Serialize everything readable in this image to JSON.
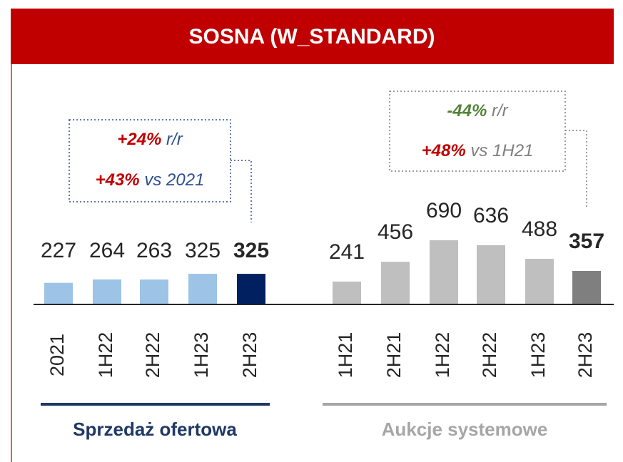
{
  "title": "SOSNA (W_STANDARD)",
  "chart_data": [
    {
      "type": "bar",
      "xlabel": "Sprzedaż ofertowa",
      "xlabel_color": "#1f3864",
      "categories": [
        "2021",
        "1H22",
        "2H22",
        "1H23",
        "2H23"
      ],
      "values": [
        227,
        264,
        263,
        325,
        325
      ],
      "colors": [
        "#9dc3e6",
        "#9dc3e6",
        "#9dc3e6",
        "#9dc3e6",
        "#002060"
      ],
      "annotations": [
        {
          "change": "+24%",
          "change_color": "#c00000",
          "text": "r/r",
          "text_color": "#2f4f8f"
        },
        {
          "change": "+43%",
          "change_color": "#c00000",
          "text": "vs 2021",
          "text_color": "#2f4f8f"
        }
      ]
    },
    {
      "type": "bar",
      "xlabel": "Aukcje systemowe",
      "xlabel_color": "#a6a6a6",
      "categories": [
        "1H21",
        "2H21",
        "1H22",
        "2H22",
        "1H23",
        "2H23"
      ],
      "values": [
        241,
        456,
        690,
        636,
        488,
        357
      ],
      "colors": [
        "#bfbfbf",
        "#bfbfbf",
        "#bfbfbf",
        "#bfbfbf",
        "#bfbfbf",
        "#7f7f7f"
      ],
      "annotations": [
        {
          "change": "-44%",
          "change_color": "#548235",
          "text": "r/r",
          "text_color": "#7f7f7f"
        },
        {
          "change": "+48%",
          "change_color": "#c00000",
          "text": "vs 1H21",
          "text_color": "#7f7f7f"
        }
      ]
    }
  ]
}
